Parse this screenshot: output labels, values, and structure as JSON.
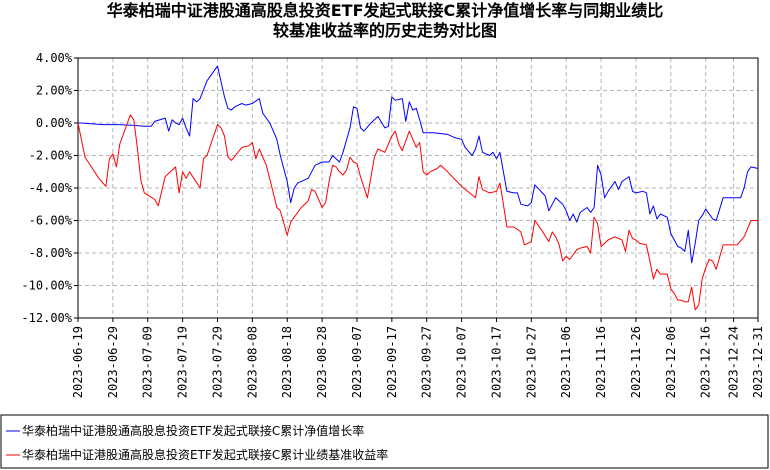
{
  "chart_data": {
    "type": "line",
    "title": [
      "华泰柏瑞中证港股通高股息投资ETF发起式联接C累计净值增长率与同期业绩比",
      "较基准收益率的历史走势对比图"
    ],
    "ylim": [
      -12.0,
      4.0
    ],
    "y_ticks": [
      4.0,
      2.0,
      0.0,
      -2.0,
      -4.0,
      -6.0,
      -8.0,
      -10.0,
      -12.0
    ],
    "y_tick_labels": [
      "4.00%",
      "2.00%",
      "0.00%",
      "-2.00%",
      "-4.00%",
      "-6.00%",
      "-8.00%",
      "-10.00%",
      "-12.00%"
    ],
    "x_range": [
      "2023-06-19",
      "2023-12-31"
    ],
    "x_tick_labels": [
      "2023-06-19",
      "2023-06-29",
      "2023-07-09",
      "2023-07-19",
      "2023-07-29",
      "2023-08-08",
      "2023-08-18",
      "2023-08-28",
      "2023-09-07",
      "2023-09-17",
      "2023-09-27",
      "2023-10-07",
      "2023-10-17",
      "2023-10-27",
      "2023-11-06",
      "2023-11-16",
      "2023-11-26",
      "2023-12-06",
      "2023-12-16",
      "2023-12-24",
      "2023-12-31"
    ],
    "grid": true,
    "legend_position": "bottom",
    "series": [
      {
        "name": "华泰柏瑞中证港股通高股息投资ETF发起式联接C累计净值增长率",
        "color": "#0000ff",
        "points": [
          [
            "2023-06-19",
            0.0
          ],
          [
            "2023-06-20",
            0.0
          ],
          [
            "2023-06-26",
            -0.1
          ],
          [
            "2023-06-29",
            -0.1
          ],
          [
            "2023-07-01",
            -0.1
          ],
          [
            "2023-07-05",
            -0.15
          ],
          [
            "2023-07-08",
            -0.2
          ],
          [
            "2023-07-10",
            -0.2
          ],
          [
            "2023-07-11",
            0.1
          ],
          [
            "2023-07-14",
            0.3
          ],
          [
            "2023-07-15",
            -0.5
          ],
          [
            "2023-07-16",
            0.2
          ],
          [
            "2023-07-17",
            0.0
          ],
          [
            "2023-07-18",
            -0.1
          ],
          [
            "2023-07-19",
            0.3
          ],
          [
            "2023-07-20",
            -0.3
          ],
          [
            "2023-07-21",
            -0.8
          ],
          [
            "2023-07-22",
            1.5
          ],
          [
            "2023-07-23",
            1.3
          ],
          [
            "2023-07-24",
            1.5
          ],
          [
            "2023-07-26",
            2.6
          ],
          [
            "2023-07-29",
            3.5
          ],
          [
            "2023-07-31",
            1.6
          ],
          [
            "2023-08-01",
            0.9
          ],
          [
            "2023-08-02",
            0.8
          ],
          [
            "2023-08-03",
            1.0
          ],
          [
            "2023-08-05",
            1.2
          ],
          [
            "2023-08-06",
            1.1
          ],
          [
            "2023-08-08",
            1.2
          ],
          [
            "2023-08-10",
            1.5
          ],
          [
            "2023-08-11",
            0.6
          ],
          [
            "2023-08-13",
            0.0
          ],
          [
            "2023-08-14",
            -0.5
          ],
          [
            "2023-08-15",
            -1.0
          ],
          [
            "2023-08-16",
            -2.0
          ],
          [
            "2023-08-18",
            -3.6
          ],
          [
            "2023-08-19",
            -4.9
          ],
          [
            "2023-08-20",
            -4.0
          ],
          [
            "2023-08-21",
            -3.7
          ],
          [
            "2023-08-24",
            -3.4
          ],
          [
            "2023-08-26",
            -2.6
          ],
          [
            "2023-08-28",
            -2.4
          ],
          [
            "2023-08-30",
            -2.4
          ],
          [
            "2023-08-31",
            -2.0
          ],
          [
            "2023-09-02",
            -2.4
          ],
          [
            "2023-09-03",
            -1.8
          ],
          [
            "2023-09-05",
            -0.3
          ],
          [
            "2023-09-06",
            1.0
          ],
          [
            "2023-09-07",
            0.9
          ],
          [
            "2023-09-08",
            -0.3
          ],
          [
            "2023-09-09",
            -0.5
          ],
          [
            "2023-09-11",
            0.0
          ],
          [
            "2023-09-13",
            0.4
          ],
          [
            "2023-09-15",
            -0.3
          ],
          [
            "2023-09-16",
            -0.2
          ],
          [
            "2023-09-17",
            1.6
          ],
          [
            "2023-09-18",
            1.4
          ],
          [
            "2023-09-20",
            1.5
          ],
          [
            "2023-09-21",
            0.1
          ],
          [
            "2023-09-22",
            1.3
          ],
          [
            "2023-09-23",
            0.8
          ],
          [
            "2023-09-24",
            0.9
          ],
          [
            "2023-09-25",
            0.2
          ],
          [
            "2023-09-26",
            -0.6
          ],
          [
            "2023-09-29",
            -0.6
          ],
          [
            "2023-10-03",
            -0.7
          ],
          [
            "2023-10-05",
            -0.9
          ],
          [
            "2023-10-07",
            -1.0
          ],
          [
            "2023-10-08",
            -1.5
          ],
          [
            "2023-10-10",
            -2.0
          ],
          [
            "2023-10-11",
            -1.6
          ],
          [
            "2023-10-12",
            -0.8
          ],
          [
            "2023-10-13",
            -1.8
          ],
          [
            "2023-10-15",
            -2.0
          ],
          [
            "2023-10-16",
            -1.8
          ],
          [
            "2023-10-17",
            -2.2
          ],
          [
            "2023-10-18",
            -1.8
          ],
          [
            "2023-10-19",
            -3.0
          ],
          [
            "2023-10-20",
            -4.2
          ],
          [
            "2023-10-22",
            -4.3
          ],
          [
            "2023-10-23",
            -4.3
          ],
          [
            "2023-10-24",
            -5.0
          ],
          [
            "2023-10-26",
            -5.1
          ],
          [
            "2023-10-27",
            -4.9
          ],
          [
            "2023-10-28",
            -3.8
          ],
          [
            "2023-10-31",
            -4.5
          ],
          [
            "2023-11-01",
            -5.4
          ],
          [
            "2023-11-03",
            -4.6
          ],
          [
            "2023-11-05",
            -5.0
          ],
          [
            "2023-11-06",
            -5.4
          ],
          [
            "2023-11-07",
            -6.0
          ],
          [
            "2023-11-08",
            -5.6
          ],
          [
            "2023-11-09",
            -6.1
          ],
          [
            "2023-11-10",
            -5.5
          ],
          [
            "2023-11-12",
            -5.2
          ],
          [
            "2023-11-13",
            -5.5
          ],
          [
            "2023-11-14",
            -5.2
          ],
          [
            "2023-11-15",
            -2.6
          ],
          [
            "2023-11-16",
            -3.2
          ],
          [
            "2023-11-17",
            -4.6
          ],
          [
            "2023-11-18",
            -4.2
          ],
          [
            "2023-11-20",
            -3.6
          ],
          [
            "2023-11-21",
            -4.1
          ],
          [
            "2023-11-22",
            -3.6
          ],
          [
            "2023-11-24",
            -3.3
          ],
          [
            "2023-11-25",
            -4.2
          ],
          [
            "2023-11-26",
            -4.3
          ],
          [
            "2023-11-28",
            -4.2
          ],
          [
            "2023-11-29",
            -4.3
          ],
          [
            "2023-11-30",
            -5.6
          ],
          [
            "2023-12-01",
            -5.1
          ],
          [
            "2023-12-02",
            -5.9
          ],
          [
            "2023-12-03",
            -5.6
          ],
          [
            "2023-12-05",
            -5.8
          ],
          [
            "2023-12-06",
            -6.8
          ],
          [
            "2023-12-08",
            -7.6
          ],
          [
            "2023-12-09",
            -7.7
          ],
          [
            "2023-12-10",
            -7.9
          ],
          [
            "2023-12-11",
            -6.6
          ],
          [
            "2023-12-12",
            -8.6
          ],
          [
            "2023-12-13",
            -7.4
          ],
          [
            "2023-12-14",
            -6.0
          ],
          [
            "2023-12-15",
            -5.7
          ],
          [
            "2023-12-16",
            -5.3
          ],
          [
            "2023-12-17",
            -5.6
          ],
          [
            "2023-12-18",
            -5.9
          ],
          [
            "2023-12-19",
            -6.0
          ],
          [
            "2023-12-21",
            -4.6
          ],
          [
            "2023-12-23",
            -4.6
          ],
          [
            "2023-12-24",
            -4.6
          ],
          [
            "2023-12-26",
            -4.6
          ],
          [
            "2023-12-27",
            -4.0
          ],
          [
            "2023-12-28",
            -3.0
          ],
          [
            "2023-12-29",
            -2.7
          ],
          [
            "2023-12-31",
            -2.8
          ]
        ]
      },
      {
        "name": "华泰柏瑞中证港股通高股息投资ETF发起式联接C累计业绩基准收益率",
        "color": "#ff0000",
        "points": [
          [
            "2023-06-19",
            0.0
          ],
          [
            "2023-06-21",
            -2.1
          ],
          [
            "2023-06-25",
            -3.4
          ],
          [
            "2023-06-27",
            -3.9
          ],
          [
            "2023-06-28",
            -2.2
          ],
          [
            "2023-06-29",
            -1.9
          ],
          [
            "2023-06-30",
            -2.7
          ],
          [
            "2023-07-01",
            -1.3
          ],
          [
            "2023-07-04",
            0.5
          ],
          [
            "2023-07-05",
            0.2
          ],
          [
            "2023-07-06",
            -1.5
          ],
          [
            "2023-07-07",
            -3.5
          ],
          [
            "2023-07-08",
            -4.3
          ],
          [
            "2023-07-11",
            -4.7
          ],
          [
            "2023-07-12",
            -5.1
          ],
          [
            "2023-07-14",
            -3.3
          ],
          [
            "2023-07-17",
            -2.7
          ],
          [
            "2023-07-18",
            -4.3
          ],
          [
            "2023-07-19",
            -3.0
          ],
          [
            "2023-07-20",
            -3.4
          ],
          [
            "2023-07-21",
            -3.0
          ],
          [
            "2023-07-24",
            -4.0
          ],
          [
            "2023-07-25",
            -2.2
          ],
          [
            "2023-07-26",
            -2.0
          ],
          [
            "2023-07-29",
            -0.1
          ],
          [
            "2023-07-30",
            -0.3
          ],
          [
            "2023-07-31",
            -0.8
          ],
          [
            "2023-08-01",
            -2.1
          ],
          [
            "2023-08-02",
            -2.3
          ],
          [
            "2023-08-05",
            -1.5
          ],
          [
            "2023-08-07",
            -1.4
          ],
          [
            "2023-08-08",
            -1.2
          ],
          [
            "2023-08-09",
            -2.2
          ],
          [
            "2023-08-10",
            -1.6
          ],
          [
            "2023-08-12",
            -2.6
          ],
          [
            "2023-08-14",
            -4.3
          ],
          [
            "2023-08-15",
            -5.2
          ],
          [
            "2023-08-16",
            -5.4
          ],
          [
            "2023-08-18",
            -6.9
          ],
          [
            "2023-08-19",
            -6.1
          ],
          [
            "2023-08-20",
            -5.8
          ],
          [
            "2023-08-22",
            -5.2
          ],
          [
            "2023-08-24",
            -4.8
          ],
          [
            "2023-08-25",
            -4.1
          ],
          [
            "2023-08-26",
            -4.2
          ],
          [
            "2023-08-28",
            -5.2
          ],
          [
            "2023-08-29",
            -4.9
          ],
          [
            "2023-08-30",
            -3.6
          ],
          [
            "2023-08-31",
            -2.6
          ],
          [
            "2023-09-01",
            -2.7
          ],
          [
            "2023-09-02",
            -3.0
          ],
          [
            "2023-09-03",
            -3.2
          ],
          [
            "2023-09-04",
            -2.9
          ],
          [
            "2023-09-05",
            -2.1
          ],
          [
            "2023-09-06",
            -2.4
          ],
          [
            "2023-09-07",
            -2.5
          ],
          [
            "2023-09-08",
            -3.3
          ],
          [
            "2023-09-10",
            -4.6
          ],
          [
            "2023-09-12",
            -2.1
          ],
          [
            "2023-09-13",
            -1.6
          ],
          [
            "2023-09-15",
            -1.8
          ],
          [
            "2023-09-17",
            -0.8
          ],
          [
            "2023-09-18",
            -0.5
          ],
          [
            "2023-09-19",
            -1.3
          ],
          [
            "2023-09-20",
            -1.7
          ],
          [
            "2023-09-22",
            -0.5
          ],
          [
            "2023-09-24",
            -1.5
          ],
          [
            "2023-09-25",
            -1.2
          ],
          [
            "2023-09-26",
            -3.0
          ],
          [
            "2023-09-27",
            -3.2
          ],
          [
            "2023-09-28",
            -3.0
          ],
          [
            "2023-09-30",
            -2.8
          ],
          [
            "2023-10-01",
            -2.6
          ],
          [
            "2023-10-03",
            -3.0
          ],
          [
            "2023-10-07",
            -3.9
          ],
          [
            "2023-10-11",
            -4.6
          ],
          [
            "2023-10-12",
            -3.3
          ],
          [
            "2023-10-13",
            -4.1
          ],
          [
            "2023-10-15",
            -4.3
          ],
          [
            "2023-10-17",
            -4.2
          ],
          [
            "2023-10-18",
            -3.7
          ],
          [
            "2023-10-19",
            -5.0
          ],
          [
            "2023-10-20",
            -6.4
          ],
          [
            "2023-10-22",
            -6.4
          ],
          [
            "2023-10-24",
            -6.7
          ],
          [
            "2023-10-25",
            -7.5
          ],
          [
            "2023-10-27",
            -7.3
          ],
          [
            "2023-10-28",
            -6.0
          ],
          [
            "2023-10-30",
            -6.6
          ],
          [
            "2023-11-01",
            -7.3
          ],
          [
            "2023-11-02",
            -6.7
          ],
          [
            "2023-11-03",
            -7.0
          ],
          [
            "2023-11-04",
            -7.5
          ],
          [
            "2023-11-05",
            -8.5
          ],
          [
            "2023-11-06",
            -8.2
          ],
          [
            "2023-11-07",
            -8.4
          ],
          [
            "2023-11-09",
            -7.8
          ],
          [
            "2023-11-10",
            -7.7
          ],
          [
            "2023-11-12",
            -7.6
          ],
          [
            "2023-11-13",
            -8.0
          ],
          [
            "2023-11-14",
            -5.8
          ],
          [
            "2023-11-15",
            -6.2
          ],
          [
            "2023-11-16",
            -7.6
          ],
          [
            "2023-11-17",
            -7.4
          ],
          [
            "2023-11-18",
            -7.2
          ],
          [
            "2023-11-20",
            -7.0
          ],
          [
            "2023-11-22",
            -7.2
          ],
          [
            "2023-11-23",
            -7.9
          ],
          [
            "2023-11-24",
            -6.6
          ],
          [
            "2023-11-25",
            -7.1
          ],
          [
            "2023-11-26",
            -7.2
          ],
          [
            "2023-11-27",
            -7.4
          ],
          [
            "2023-11-29",
            -7.5
          ],
          [
            "2023-11-30",
            -8.5
          ],
          [
            "2023-12-01",
            -9.6
          ],
          [
            "2023-12-02",
            -9.0
          ],
          [
            "2023-12-03",
            -9.3
          ],
          [
            "2023-12-05",
            -9.3
          ],
          [
            "2023-12-06",
            -10.2
          ],
          [
            "2023-12-07",
            -10.5
          ],
          [
            "2023-12-08",
            -10.9
          ],
          [
            "2023-12-09",
            -10.9
          ],
          [
            "2023-12-10",
            -11.0
          ],
          [
            "2023-12-11",
            -11.0
          ],
          [
            "2023-12-12",
            -10.1
          ],
          [
            "2023-12-13",
            -11.5
          ],
          [
            "2023-12-14",
            -11.2
          ],
          [
            "2023-12-15",
            -9.6
          ],
          [
            "2023-12-16",
            -8.9
          ],
          [
            "2023-12-17",
            -8.4
          ],
          [
            "2023-12-18",
            -8.5
          ],
          [
            "2023-12-19",
            -9.0
          ],
          [
            "2023-12-21",
            -7.5
          ],
          [
            "2023-12-23",
            -7.5
          ],
          [
            "2023-12-25",
            -7.5
          ],
          [
            "2023-12-27",
            -7.0
          ],
          [
            "2023-12-29",
            -6.0
          ],
          [
            "2023-12-31",
            -6.0
          ]
        ]
      }
    ]
  }
}
